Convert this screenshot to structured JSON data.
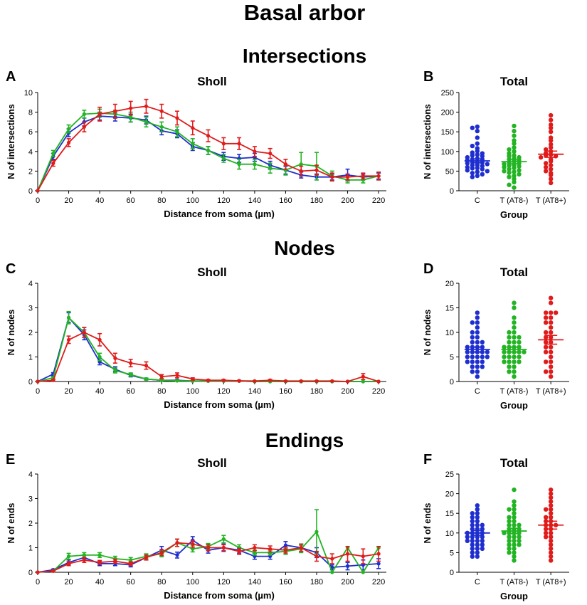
{
  "figure_title": "Basal arbor",
  "colors": {
    "C": "#1f2fcf",
    "T (AT8-)": "#22b422",
    "T (AT8+)": "#e01b1b"
  },
  "sections": [
    {
      "title": "Intersections"
    },
    {
      "title": "Nodes"
    },
    {
      "title": "Endings"
    }
  ],
  "chart_data": [
    {
      "id": "A",
      "panel_letter": "A",
      "type": "line",
      "title": "Sholl",
      "xlabel": "Distance from soma (µm)",
      "ylabel": "N of intersections",
      "xlim": [
        0,
        225
      ],
      "ylim": [
        0,
        10
      ],
      "xticks": [
        0,
        20,
        40,
        60,
        80,
        100,
        120,
        140,
        160,
        180,
        200,
        220
      ],
      "yticks": [
        0,
        2,
        4,
        6,
        8,
        10
      ],
      "x": [
        0,
        10,
        20,
        30,
        40,
        50,
        60,
        70,
        80,
        90,
        100,
        110,
        120,
        130,
        140,
        150,
        160,
        170,
        180,
        190,
        200,
        210,
        220
      ],
      "series": [
        {
          "color": "#1f2fcf",
          "values": [
            0,
            3.5,
            5.9,
            7.0,
            7.6,
            7.5,
            7.4,
            7.2,
            6.1,
            5.8,
            4.5,
            4.1,
            3.5,
            3.3,
            3.4,
            2.6,
            2.1,
            1.6,
            1.4,
            1.4,
            1.6,
            1.4,
            1.5
          ],
          "err": [
            0,
            0.3,
            0.4,
            0.4,
            0.4,
            0.4,
            0.4,
            0.4,
            0.4,
            0.4,
            0.4,
            0.4,
            0.4,
            0.4,
            0.4,
            0.4,
            0.4,
            0.3,
            0.3,
            0.3,
            0.6,
            0.3,
            0.3
          ]
        },
        {
          "color": "#22b422",
          "values": [
            0,
            3.8,
            6.3,
            7.8,
            7.9,
            7.8,
            7.5,
            7.0,
            6.5,
            6.0,
            4.8,
            4.1,
            3.3,
            2.7,
            2.7,
            2.3,
            2.1,
            2.7,
            2.5,
            1.5,
            1.1,
            1.1,
            1.5
          ],
          "err": [
            0,
            0.3,
            0.4,
            0.4,
            0.4,
            0.4,
            0.5,
            0.5,
            0.5,
            0.5,
            0.5,
            0.4,
            0.4,
            0.5,
            0.5,
            0.5,
            0.5,
            1.2,
            1.4,
            0.5,
            0.3,
            0.3,
            0.4
          ]
        },
        {
          "color": "#e01b1b",
          "values": [
            0,
            2.8,
            4.9,
            6.5,
            7.8,
            8.1,
            8.4,
            8.6,
            8.1,
            7.4,
            6.4,
            5.6,
            4.8,
            4.8,
            4.0,
            3.8,
            2.7,
            2.0,
            2.1,
            1.4,
            1.4,
            1.5,
            1.5
          ],
          "err": [
            0,
            0.3,
            0.4,
            0.5,
            0.7,
            0.7,
            0.7,
            0.7,
            0.7,
            0.7,
            0.7,
            0.6,
            0.6,
            0.6,
            0.5,
            0.5,
            0.5,
            0.5,
            0.5,
            0.4,
            0.3,
            0.3,
            0.4
          ]
        }
      ]
    },
    {
      "id": "B",
      "panel_letter": "B",
      "type": "scatter",
      "title": "Total",
      "xlabel": "Group",
      "ylabel": "N of intersections",
      "ylim": [
        0,
        250
      ],
      "yticks": [
        0,
        50,
        100,
        150,
        200,
        250
      ],
      "categories": [
        "C",
        "T (AT8-)",
        "T (AT8+)"
      ],
      "groups": [
        {
          "color": "#1f2fcf",
          "mean": 76,
          "sem": 5,
          "points": [
            163,
            160,
            152,
            135,
            120,
            114,
            108,
            101,
            97,
            95,
            92,
            90,
            88,
            85,
            82,
            80,
            80,
            77,
            75,
            73,
            72,
            70,
            68,
            66,
            65,
            63,
            60,
            58,
            57,
            55,
            52,
            50,
            48,
            45,
            42,
            38,
            35
          ]
        },
        {
          "color": "#22b422",
          "mean": 74,
          "sem": 5,
          "points": [
            165,
            152,
            140,
            128,
            120,
            110,
            105,
            100,
            95,
            90,
            88,
            85,
            82,
            80,
            78,
            75,
            72,
            70,
            68,
            66,
            64,
            62,
            60,
            58,
            55,
            52,
            50,
            48,
            46,
            42,
            38,
            35,
            30,
            22,
            15,
            8
          ]
        },
        {
          "color": "#e01b1b",
          "mean": 93,
          "sem": 8,
          "points": [
            192,
            180,
            168,
            160,
            150,
            135,
            128,
            118,
            110,
            105,
            100,
            95,
            92,
            90,
            88,
            85,
            80,
            75,
            70,
            65,
            60,
            55,
            50,
            45,
            40,
            30,
            20
          ]
        }
      ]
    },
    {
      "id": "C",
      "panel_letter": "C",
      "type": "line",
      "title": "Sholl",
      "xlabel": "Distance from soma (µm)",
      "ylabel": "N of nodes",
      "xlim": [
        0,
        225
      ],
      "ylim": [
        0,
        4
      ],
      "xticks": [
        0,
        20,
        40,
        60,
        80,
        100,
        120,
        140,
        160,
        180,
        200,
        220
      ],
      "yticks": [
        0,
        1,
        2,
        3,
        4
      ],
      "x": [
        0,
        10,
        20,
        30,
        40,
        50,
        60,
        70,
        80,
        90,
        100,
        110,
        120,
        130,
        140,
        150,
        160,
        170,
        180,
        190,
        200,
        210,
        220
      ],
      "series": [
        {
          "color": "#1f2fcf",
          "values": [
            0,
            0.3,
            2.6,
            1.9,
            0.8,
            0.5,
            0.25,
            0.1,
            0.05,
            0.05,
            0.02,
            0.02,
            0.02,
            0.02,
            0,
            0,
            0,
            0,
            0,
            0,
            0,
            0,
            0
          ],
          "err": [
            0,
            0.06,
            0.2,
            0.2,
            0.12,
            0.1,
            0.06,
            0.04,
            0.02,
            0.02,
            0.01,
            0.01,
            0.01,
            0.01,
            0,
            0,
            0,
            0,
            0,
            0,
            0,
            0,
            0
          ]
        },
        {
          "color": "#22b422",
          "values": [
            0,
            0.15,
            2.6,
            2.0,
            1.0,
            0.45,
            0.28,
            0.1,
            0.05,
            0.03,
            0.02,
            0.02,
            0.02,
            0.02,
            0,
            0,
            0,
            0,
            0,
            0,
            0,
            0,
            0
          ],
          "err": [
            0,
            0.05,
            0.25,
            0.2,
            0.15,
            0.1,
            0.07,
            0.04,
            0.02,
            0.02,
            0.01,
            0.01,
            0.01,
            0.01,
            0,
            0,
            0,
            0,
            0,
            0,
            0,
            0,
            0
          ]
        },
        {
          "color": "#e01b1b",
          "values": [
            0,
            0.05,
            1.7,
            2.0,
            1.7,
            0.95,
            0.75,
            0.65,
            0.2,
            0.25,
            0.1,
            0.05,
            0.05,
            0.03,
            0.02,
            0.05,
            0.02,
            0.02,
            0.02,
            0.02,
            0,
            0.2,
            0
          ],
          "err": [
            0,
            0.03,
            0.15,
            0.2,
            0.25,
            0.2,
            0.15,
            0.15,
            0.08,
            0.1,
            0.05,
            0.03,
            0.03,
            0.02,
            0.01,
            0.03,
            0.01,
            0.01,
            0.01,
            0.01,
            0,
            0.12,
            0
          ]
        }
      ]
    },
    {
      "id": "D",
      "panel_letter": "D",
      "type": "scatter",
      "title": "Total",
      "xlabel": "Group",
      "ylabel": "N of nodes",
      "ylim": [
        0,
        20
      ],
      "yticks": [
        0,
        5,
        10,
        15,
        20
      ],
      "categories": [
        "C",
        "T (AT8-)",
        "T (AT8+)"
      ],
      "groups": [
        {
          "color": "#1f2fcf",
          "mean": 6.5,
          "sem": 0.5,
          "points": [
            14,
            13,
            12,
            12,
            11,
            10,
            10,
            9,
            9,
            8,
            8,
            8,
            7,
            7,
            7,
            7,
            6,
            6,
            6,
            6,
            6,
            5,
            5,
            5,
            5,
            5,
            4,
            4,
            4,
            4,
            3,
            3,
            3,
            2,
            2,
            1
          ]
        },
        {
          "color": "#22b422",
          "mean": 6.5,
          "sem": 0.5,
          "points": [
            16,
            15,
            13,
            12,
            11,
            10,
            10,
            9,
            9,
            9,
            8,
            8,
            8,
            7,
            7,
            7,
            7,
            6,
            6,
            6,
            6,
            6,
            5,
            5,
            5,
            5,
            4,
            4,
            4,
            4,
            3,
            3,
            2,
            2,
            1
          ]
        },
        {
          "color": "#e01b1b",
          "mean": 8.5,
          "sem": 0.9,
          "points": [
            17,
            16,
            14,
            14,
            14,
            13,
            13,
            12,
            12,
            11,
            10,
            10,
            9,
            9,
            8,
            8,
            7,
            7,
            6,
            6,
            5,
            4,
            4,
            3,
            2,
            2,
            1
          ]
        }
      ]
    },
    {
      "id": "E",
      "panel_letter": "E",
      "type": "line",
      "title": "Sholl",
      "xlabel": "Distance from soma (µm)",
      "ylabel": "N of ends",
      "xlim": [
        0,
        225
      ],
      "ylim": [
        0,
        4
      ],
      "xticks": [
        0,
        20,
        40,
        60,
        80,
        100,
        120,
        140,
        160,
        180,
        200,
        220
      ],
      "yticks": [
        0,
        1,
        2,
        3,
        4
      ],
      "x": [
        0,
        10,
        20,
        30,
        40,
        50,
        60,
        70,
        80,
        90,
        100,
        110,
        120,
        130,
        140,
        150,
        160,
        170,
        180,
        190,
        200,
        210,
        220
      ],
      "series": [
        {
          "color": "#1f2fcf",
          "values": [
            0,
            0.1,
            0.4,
            0.6,
            0.35,
            0.35,
            0.3,
            0.6,
            0.9,
            0.7,
            1.3,
            0.9,
            1.0,
            0.9,
            0.65,
            0.65,
            1.1,
            1.0,
            0.8,
            0.2,
            0.25,
            0.3,
            0.35
          ],
          "err": [
            0,
            0.03,
            0.1,
            0.1,
            0.08,
            0.08,
            0.08,
            0.1,
            0.15,
            0.12,
            0.15,
            0.12,
            0.15,
            0.12,
            0.12,
            0.12,
            0.15,
            0.15,
            0.2,
            0.1,
            0.15,
            0.2,
            0.2
          ]
        },
        {
          "color": "#22b422",
          "values": [
            0,
            0.05,
            0.65,
            0.7,
            0.7,
            0.55,
            0.5,
            0.65,
            0.75,
            1.2,
            0.95,
            1.05,
            1.35,
            1.0,
            0.8,
            0.8,
            0.85,
            0.95,
            1.65,
            0,
            1.0,
            0,
            1.0
          ],
          "err": [
            0,
            0.03,
            0.12,
            0.1,
            0.1,
            0.1,
            0.1,
            0.1,
            0.12,
            0.15,
            0.12,
            0.12,
            0.15,
            0.12,
            0.1,
            0.1,
            0.12,
            0.15,
            0.9,
            0,
            0,
            0,
            0
          ]
        },
        {
          "color": "#e01b1b",
          "values": [
            0,
            0.05,
            0.35,
            0.5,
            0.4,
            0.45,
            0.35,
            0.6,
            0.8,
            1.2,
            1.15,
            1.0,
            1.0,
            0.85,
            1.0,
            0.95,
            0.9,
            1.0,
            0.65,
            0.55,
            0.75,
            0.65,
            0.75
          ],
          "err": [
            0,
            0.03,
            0.08,
            0.1,
            0.08,
            0.08,
            0.08,
            0.1,
            0.12,
            0.15,
            0.15,
            0.12,
            0.12,
            0.12,
            0.12,
            0.12,
            0.12,
            0.15,
            0.2,
            0.2,
            0.3,
            0.3,
            0.3
          ]
        }
      ]
    },
    {
      "id": "F",
      "panel_letter": "F",
      "type": "scatter",
      "title": "Total",
      "xlabel": "Group",
      "ylabel": "N of ends",
      "ylim": [
        0,
        25
      ],
      "yticks": [
        0,
        5,
        10,
        15,
        20,
        25
      ],
      "categories": [
        "C",
        "T (AT8-)",
        "T (AT8+)"
      ],
      "groups": [
        {
          "color": "#1f2fcf",
          "mean": 10,
          "sem": 0.6,
          "points": [
            17,
            16,
            15,
            15,
            14,
            14,
            13,
            13,
            12,
            12,
            12,
            11,
            11,
            11,
            10,
            10,
            10,
            10,
            9,
            9,
            9,
            9,
            8,
            8,
            8,
            8,
            7,
            7,
            7,
            6,
            6,
            6,
            5,
            5,
            4,
            4
          ]
        },
        {
          "color": "#22b422",
          "mean": 10.5,
          "sem": 0.7,
          "points": [
            21,
            18,
            17,
            16,
            16,
            15,
            14,
            14,
            13,
            13,
            12,
            12,
            12,
            11,
            11,
            11,
            10,
            10,
            10,
            10,
            9,
            9,
            9,
            8,
            8,
            8,
            7,
            7,
            7,
            6,
            6,
            5,
            5,
            4,
            3
          ]
        },
        {
          "color": "#e01b1b",
          "mean": 12,
          "sem": 1.0,
          "points": [
            21,
            20,
            19,
            18,
            17,
            16,
            16,
            15,
            14,
            14,
            13,
            13,
            12,
            12,
            12,
            11,
            11,
            10,
            10,
            9,
            9,
            8,
            7,
            6,
            5,
            4,
            3
          ]
        }
      ]
    }
  ]
}
